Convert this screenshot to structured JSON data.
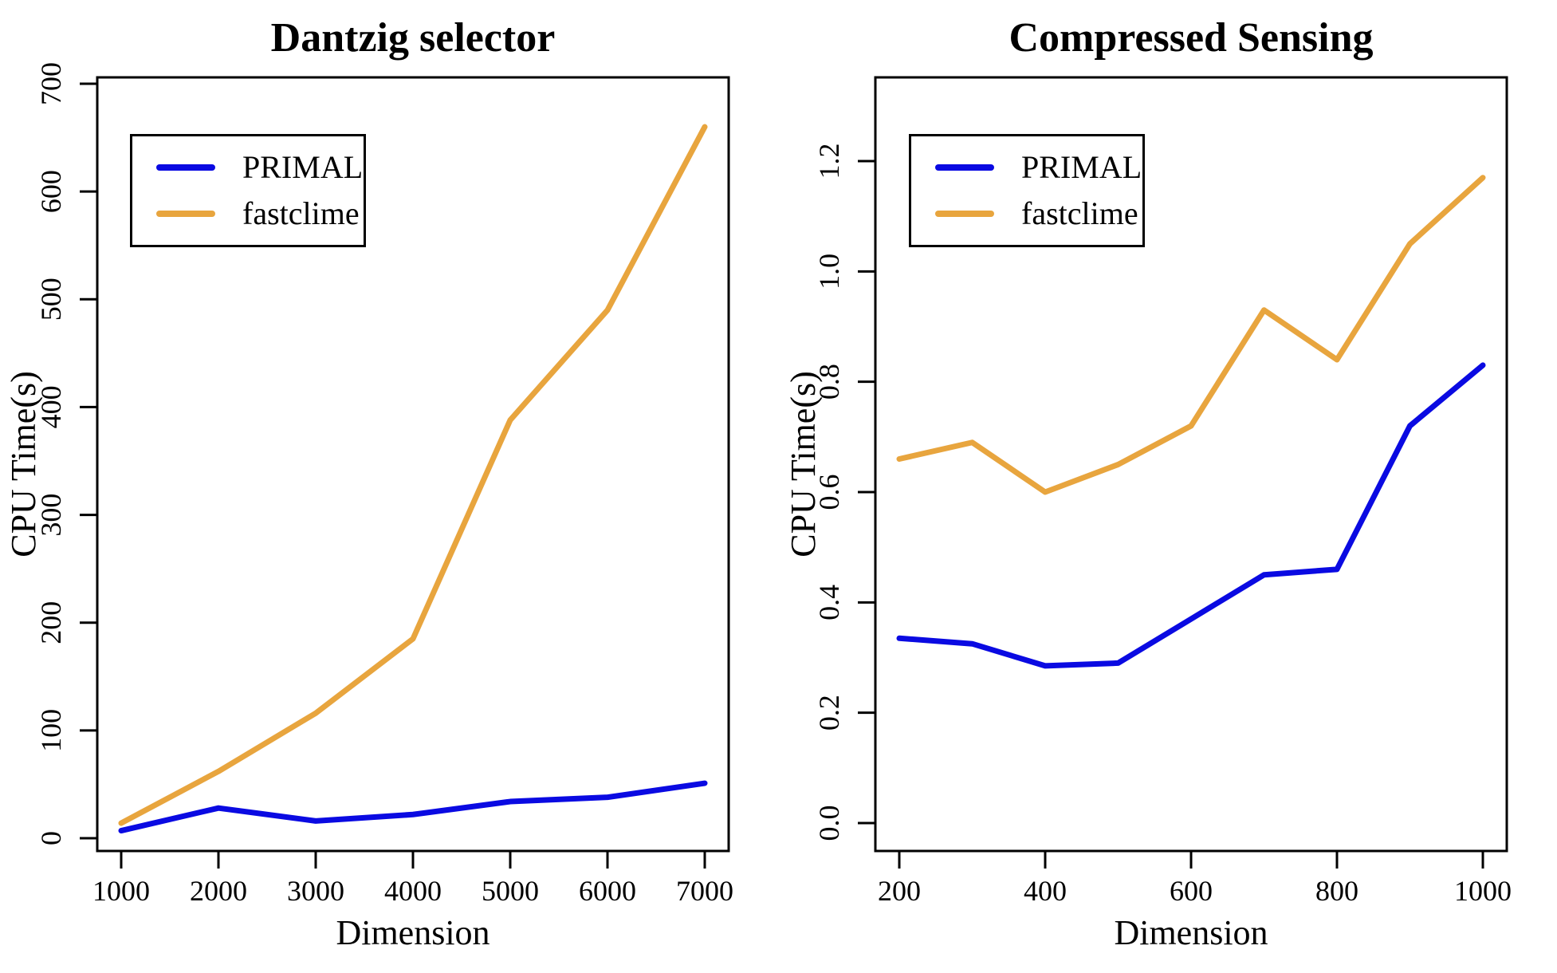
{
  "page": {
    "background": "#ffffff",
    "text_color": "#000000"
  },
  "colors": {
    "primal_line": "#0a0ae2",
    "fastclime_line": "#e8a53e",
    "axis": "#000000"
  },
  "chart_data": [
    {
      "type": "line",
      "title": "Dantzig selector",
      "xlabel": "Dimension",
      "ylabel": "CPU Time(s)",
      "x": [
        1000,
        2000,
        3000,
        4000,
        5000,
        6000,
        7000
      ],
      "xtick_values": [
        1000,
        2000,
        3000,
        4000,
        5000,
        6000,
        7000
      ],
      "xtick_labels": [
        "1000",
        "2000",
        "3000",
        "4000",
        "5000",
        "6000",
        "7000"
      ],
      "ytick_values": [
        0,
        100,
        200,
        300,
        400,
        500,
        600,
        700
      ],
      "ytick_labels": [
        "0",
        "100",
        "200",
        "300",
        "400",
        "500",
        "600",
        "700"
      ],
      "xlim": [
        1000,
        7000
      ],
      "ylim": [
        0,
        700
      ],
      "grid": false,
      "legend_position": "top-left",
      "series": [
        {
          "name": "PRIMAL",
          "color": "#0a0ae2",
          "values": [
            7,
            28,
            16,
            22,
            34,
            38,
            51
          ]
        },
        {
          "name": "fastclime",
          "color": "#e8a53e",
          "values": [
            14,
            62,
            116,
            185,
            388,
            490,
            660
          ]
        }
      ]
    },
    {
      "type": "line",
      "title": "Compressed Sensing",
      "xlabel": "Dimension",
      "ylabel": "CPU Time(s)",
      "x": [
        200,
        300,
        400,
        500,
        600,
        700,
        800,
        900,
        1000
      ],
      "xtick_values": [
        200,
        400,
        600,
        800,
        1000
      ],
      "xtick_labels": [
        "200",
        "400",
        "600",
        "800",
        "1000"
      ],
      "ytick_values": [
        0.0,
        0.2,
        0.4,
        0.6,
        0.8,
        1.0,
        1.2
      ],
      "ytick_labels": [
        "0.0",
        "0.2",
        "0.4",
        "0.6",
        "0.8",
        "1.0",
        "1.2"
      ],
      "xlim": [
        200,
        1000
      ],
      "ylim": [
        0.0,
        1.2
      ],
      "grid": false,
      "legend_position": "top-left",
      "series": [
        {
          "name": "PRIMAL",
          "color": "#0a0ae2",
          "values": [
            0.335,
            0.325,
            0.285,
            0.29,
            0.37,
            0.45,
            0.46,
            0.72,
            0.83
          ]
        },
        {
          "name": "fastclime",
          "color": "#e8a53e",
          "values": [
            0.66,
            0.69,
            0.6,
            0.65,
            0.72,
            0.93,
            0.84,
            1.05,
            1.17
          ]
        }
      ]
    }
  ]
}
